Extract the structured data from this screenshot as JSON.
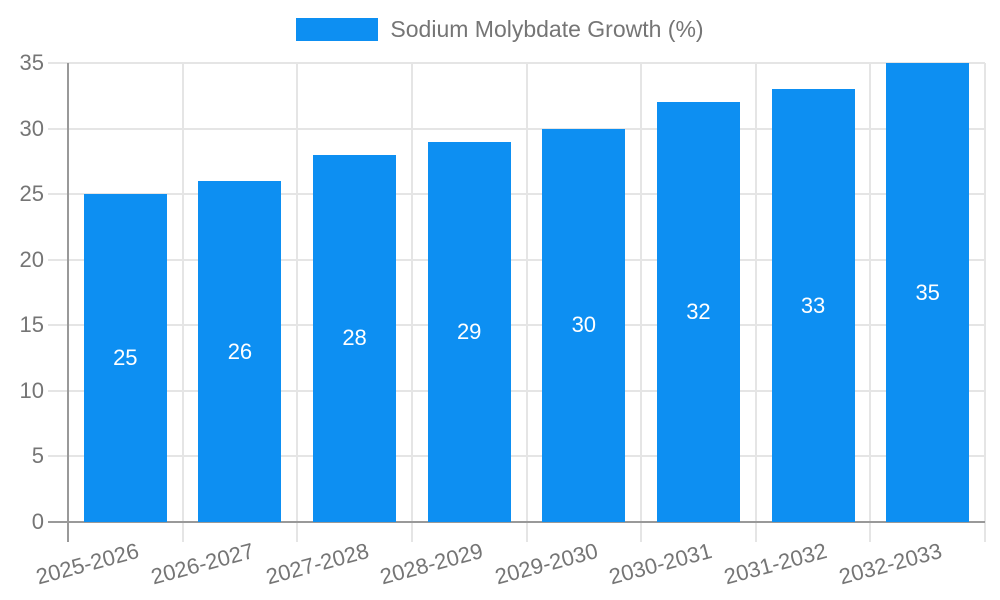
{
  "legend": {
    "label": "Sodium Molybdate Growth (%)"
  },
  "chart_data": {
    "type": "bar",
    "title": "",
    "xlabel": "",
    "ylabel": "",
    "categories": [
      "2025-2026",
      "2026-2027",
      "2027-2028",
      "2028-2029",
      "2029-2030",
      "2030-2031",
      "2031-2032",
      "2032-2033"
    ],
    "series": [
      {
        "name": "Sodium Molybdate Growth (%)",
        "values": [
          25,
          26,
          28,
          29,
          30,
          32,
          33,
          35
        ]
      }
    ],
    "value_labels": [
      25,
      26,
      28,
      29,
      30,
      32,
      33,
      35
    ],
    "yticks": [
      0,
      5,
      10,
      15,
      20,
      25,
      30,
      35
    ],
    "ylim": [
      0,
      35
    ],
    "grid": true,
    "legend_position": "top-center",
    "x_label_rotation_deg": -15,
    "colors": {
      "bar": "#0d8ff2",
      "value_label": "#ffffff",
      "axis_label": "#757575",
      "legend_text": "#757575",
      "grid": "#e5e5e5",
      "axis_line": "#999999"
    }
  }
}
